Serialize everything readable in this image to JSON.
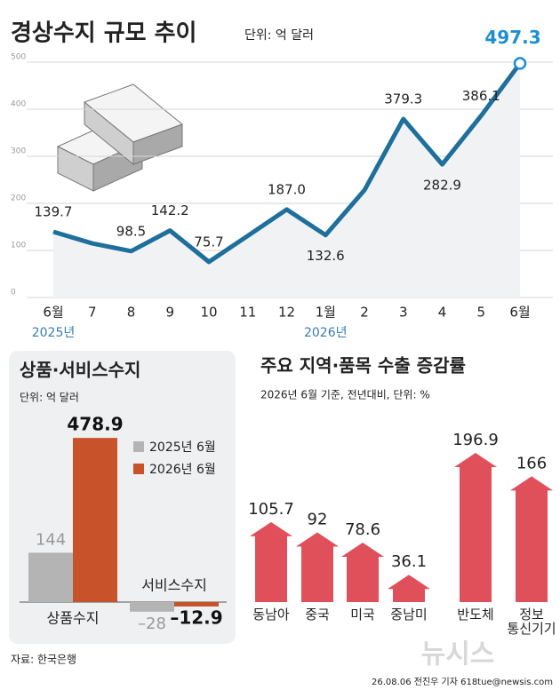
{
  "chart_data": [
    {
      "type": "line",
      "title": "경상수지 규모 추이",
      "unit": "단위: 억 달러",
      "categories": [
        "6월",
        "7",
        "8",
        "9",
        "10",
        "11",
        "12",
        "1월",
        "2",
        "3",
        "4",
        "5",
        "6월"
      ],
      "year_labels": [
        "2025년",
        null,
        null,
        null,
        null,
        null,
        null,
        "2026년",
        null,
        null,
        null,
        null,
        null
      ],
      "values": [
        139.7,
        115,
        98.5,
        142.2,
        75.7,
        131,
        187,
        132.6,
        228,
        379.3,
        282.9,
        386.1,
        497.3
      ],
      "value_labels": [
        "139.7",
        null,
        "98.5",
        "142.2",
        "75.7",
        null,
        "187.0",
        "132.6",
        null,
        "379.3",
        "282.9",
        "386.1",
        "497.3"
      ],
      "color": "#1f6f9c",
      "highlight_color": "#1d8fd0",
      "ylim": [
        0,
        500
      ],
      "yticks": [
        0,
        100,
        200,
        300,
        400,
        500
      ],
      "grid": true
    },
    {
      "type": "bar",
      "title": "상품·서비스수지",
      "unit": "단위: 억 달러",
      "categories": [
        "상품수지",
        "서비스수지"
      ],
      "series": [
        {
          "name": "2025년 6월",
          "color": "#b4b4b4",
          "values": [
            144,
            -28
          ],
          "value_labels": [
            "144",
            "–28"
          ]
        },
        {
          "name": "2026년 6월",
          "color": "#c8522a",
          "values": [
            478.9,
            -12.9
          ],
          "value_labels": [
            "478.9",
            "–12.9"
          ]
        }
      ]
    },
    {
      "type": "arrow-bar",
      "title": "주요 지역·품목 수출 증감률",
      "subtitle": "2026년 6월 기준, 전년대비, 단위: %",
      "categories": [
        "동남아",
        "중국",
        "미국",
        "중남미",
        "반도체",
        "정보\n통신기기"
      ],
      "values": [
        105.7,
        92,
        78.6,
        36.1,
        196.9,
        166
      ],
      "color": "#e0505a"
    }
  ],
  "source": "자료: 한국은행",
  "credit": "26.08.06 전진우 기자 618tue@newsis.com",
  "watermark": "뉴시스"
}
